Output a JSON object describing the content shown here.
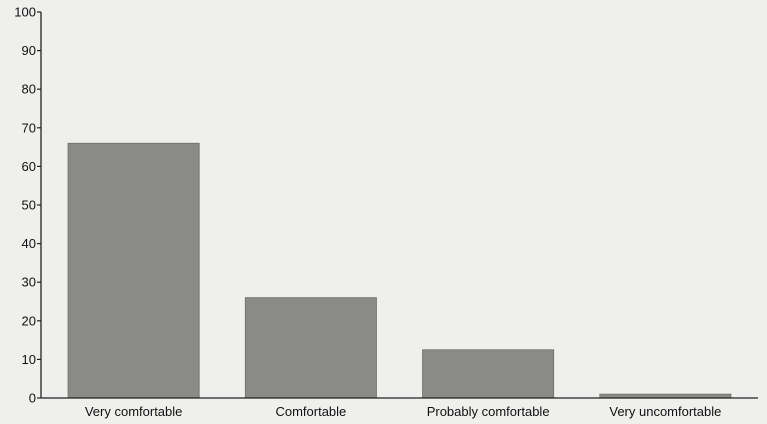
{
  "chart_data": {
    "type": "bar",
    "categories": [
      "Very comfortable",
      "Comfortable",
      "Probably comfortable",
      "Very uncomfortable"
    ],
    "values": [
      66,
      26,
      12.5,
      1
    ],
    "title": "",
    "xlabel": "",
    "ylabel": "",
    "ylim": [
      0,
      100
    ],
    "yticks": [
      0,
      10,
      20,
      30,
      40,
      50,
      60,
      70,
      80,
      90,
      100
    ],
    "grid": false,
    "bar_color": "#8a8a86",
    "axis_color": "#222222"
  }
}
